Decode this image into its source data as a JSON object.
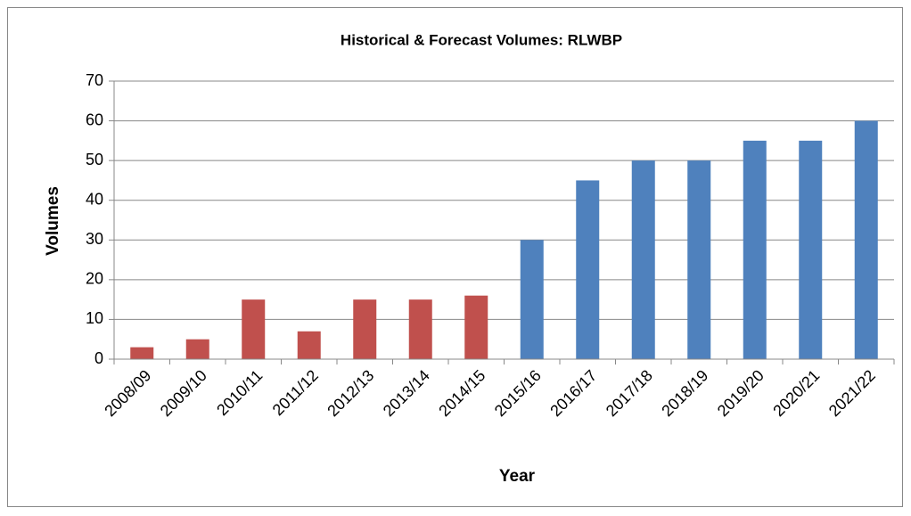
{
  "chart_data": {
    "type": "bar",
    "title": "Historical & Forecast Volumes: RLWBP",
    "x_label": "Year",
    "y_label": "Volumes",
    "categories": [
      "2008/09",
      "2009/10",
      "2010/11",
      "2011/12",
      "2012/13",
      "2013/14",
      "2014/15",
      "2015/16",
      "2016/17",
      "2017/18",
      "2018/19",
      "2019/20",
      "2020/21",
      "2021/22"
    ],
    "values": [
      3,
      5,
      15,
      7,
      15,
      15,
      16,
      30,
      45,
      50,
      50,
      55,
      55,
      60
    ],
    "colors": [
      "#c0504d",
      "#c0504d",
      "#c0504d",
      "#c0504d",
      "#c0504d",
      "#c0504d",
      "#c0504d",
      "#4f81bd",
      "#4f81bd",
      "#4f81bd",
      "#4f81bd",
      "#4f81bd",
      "#4f81bd",
      "#4f81bd"
    ],
    "ylim": [
      0,
      70
    ],
    "yticks": [
      0,
      10,
      20,
      30,
      40,
      50,
      60,
      70
    ],
    "grid": true
  }
}
